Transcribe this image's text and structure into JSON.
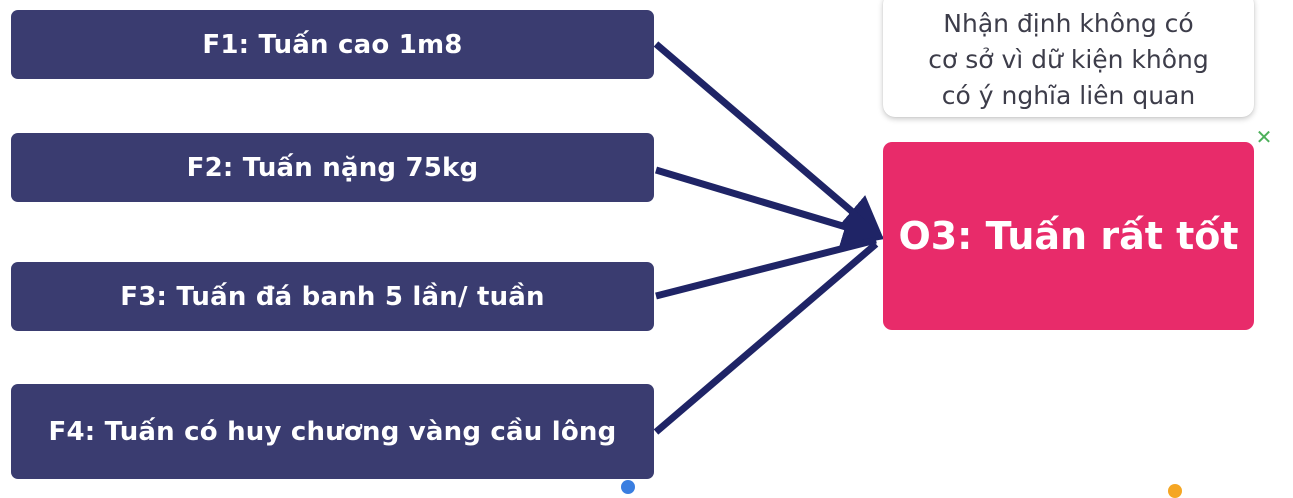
{
  "facts": [
    {
      "label": "F1: Tuấn cao 1m8"
    },
    {
      "label": "F2: Tuấn nặng 75kg"
    },
    {
      "label": "F3: Tuấn đá banh 5 lần/ tuần"
    },
    {
      "label": "F4: Tuấn có huy chương vàng cầu lông"
    }
  ],
  "outcome": {
    "label": "O3: Tuấn rất tốt"
  },
  "note": {
    "lines": [
      "Nhận định không có",
      "cơ sở vì dữ kiện không",
      "có ý nghĩa liên quan"
    ]
  },
  "close_mark": {
    "glyph": "✕",
    "icon": "close-icon"
  },
  "colors": {
    "fact_box": "#3a3c70",
    "outcome_box": "#e82b6a",
    "arrow": "#1f2466",
    "close_mark": "#4cb05a"
  }
}
